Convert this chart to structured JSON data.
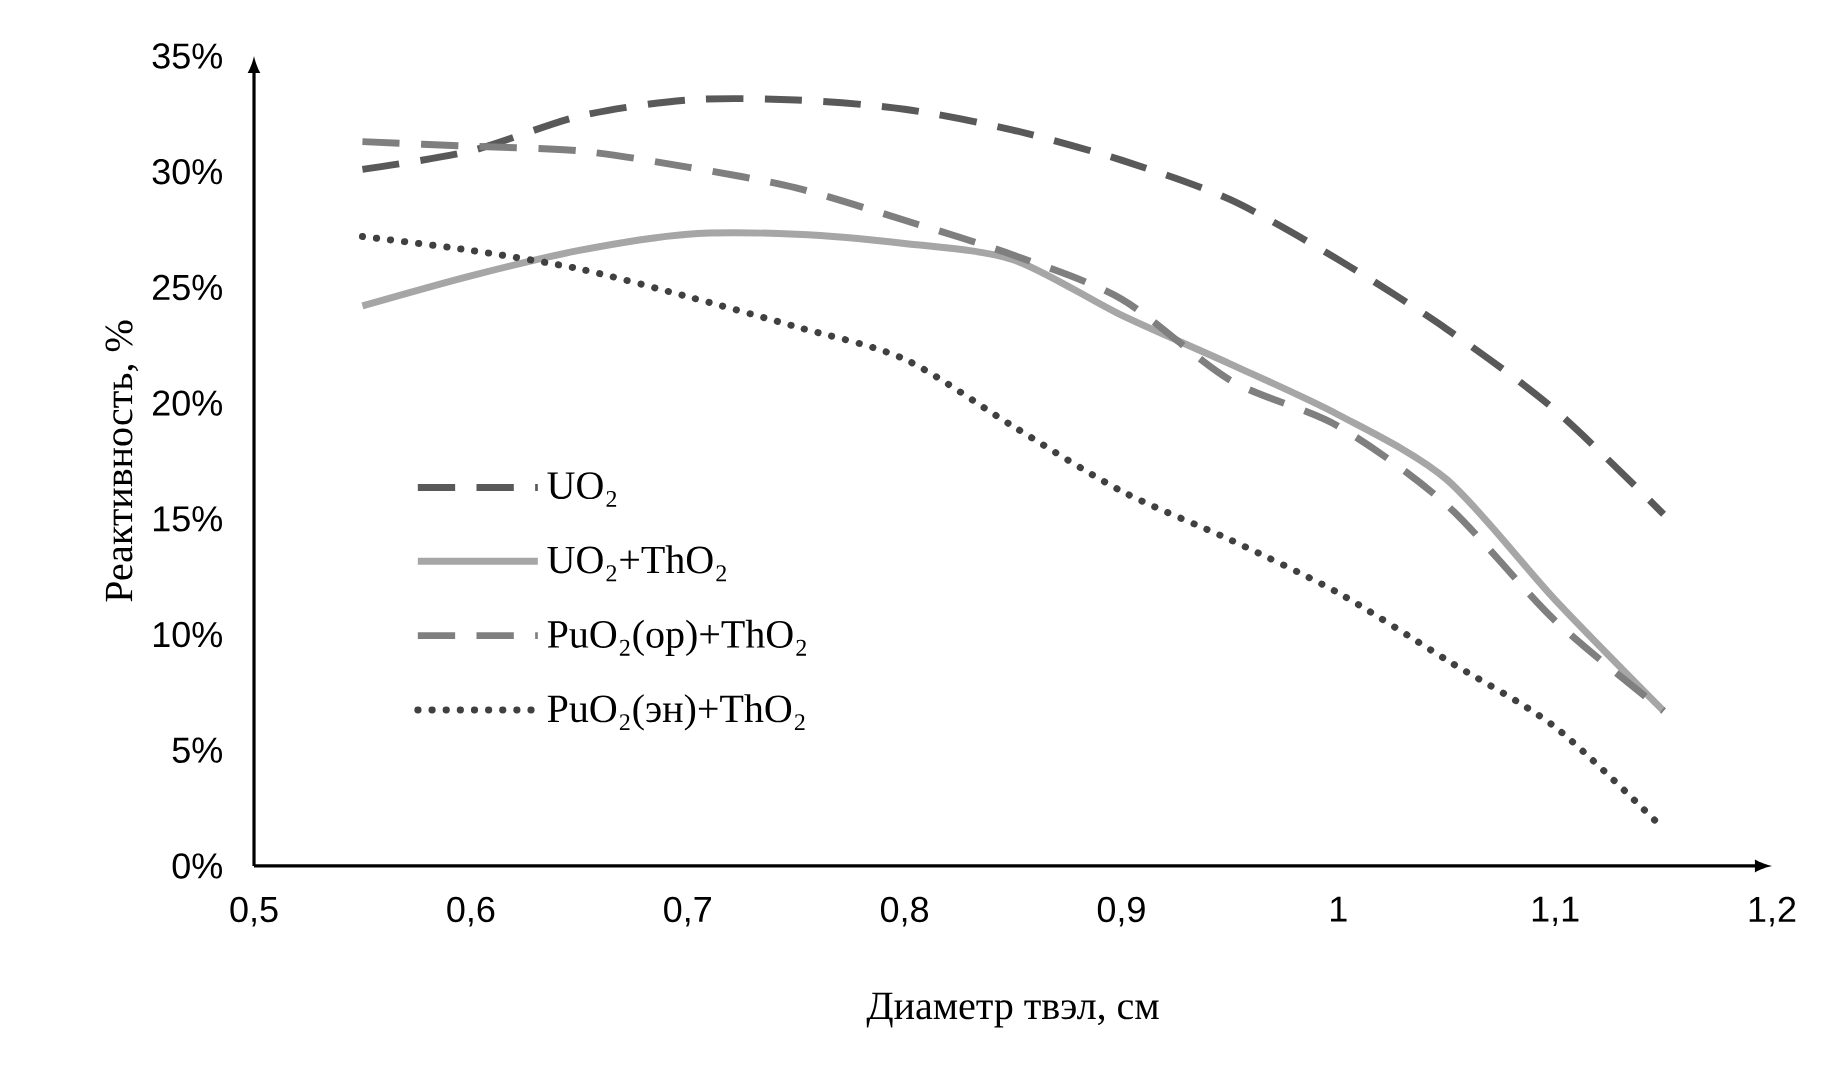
{
  "chart_data": {
    "type": "line",
    "xlabel": "Диаметр твэл, см",
    "ylabel": "Реактивность, %",
    "x": [
      0.55,
      0.6,
      0.65,
      0.7,
      0.75,
      0.8,
      0.85,
      0.9,
      0.95,
      1.0,
      1.05,
      1.1,
      1.15
    ],
    "series": [
      {
        "name": "UO₂",
        "color": "#595959",
        "line_style": "dashed",
        "values": [
          30.1,
          30.9,
          32.4,
          33.1,
          33.1,
          32.7,
          31.8,
          30.5,
          28.8,
          26.2,
          23.2,
          19.7,
          15.2
        ]
      },
      {
        "name": "UO₂+ThO₂",
        "color": "#a6a6a6",
        "line_style": "solid",
        "values": [
          24.2,
          25.5,
          26.6,
          27.3,
          27.3,
          26.9,
          26.2,
          23.8,
          21.7,
          19.5,
          16.7,
          11.5,
          6.7
        ]
      },
      {
        "name": "PuO₂(ор)+ThO₂",
        "color": "#7f7f7f",
        "line_style": "dashed",
        "values": [
          31.3,
          31.1,
          30.9,
          30.2,
          29.3,
          27.9,
          26.4,
          24.5,
          21.0,
          19.0,
          15.6,
          10.6,
          6.7
        ]
      },
      {
        "name": "PuO₂(эн)+ThO₂",
        "color": "#404040",
        "line_style": "dotted",
        "values": [
          27.2,
          26.6,
          25.8,
          24.6,
          23.3,
          21.9,
          19.0,
          16.2,
          14.1,
          11.8,
          8.9,
          6.0,
          1.6
        ]
      }
    ],
    "xlim": [
      0.5,
      1.2
    ],
    "ylim": [
      0,
      35
    ],
    "xticks": [
      {
        "value": 0.5,
        "label": "0,5"
      },
      {
        "value": 0.6,
        "label": "0,6"
      },
      {
        "value": 0.7,
        "label": "0,7"
      },
      {
        "value": 0.8,
        "label": "0,8"
      },
      {
        "value": 0.9,
        "label": "0,9"
      },
      {
        "value": 1.0,
        "label": "1"
      },
      {
        "value": 1.1,
        "label": "1,1"
      },
      {
        "value": 1.2,
        "label": "1,2"
      }
    ],
    "yticks": [
      {
        "value": 0,
        "label": "0%"
      },
      {
        "value": 5,
        "label": "5%"
      },
      {
        "value": 10,
        "label": "10%"
      },
      {
        "value": 15,
        "label": "15%"
      },
      {
        "value": 20,
        "label": "20%"
      },
      {
        "value": 25,
        "label": "25%"
      },
      {
        "value": 30,
        "label": "30%"
      },
      {
        "value": 35,
        "label": "35%"
      }
    ],
    "legend": "left",
    "grid": false
  }
}
